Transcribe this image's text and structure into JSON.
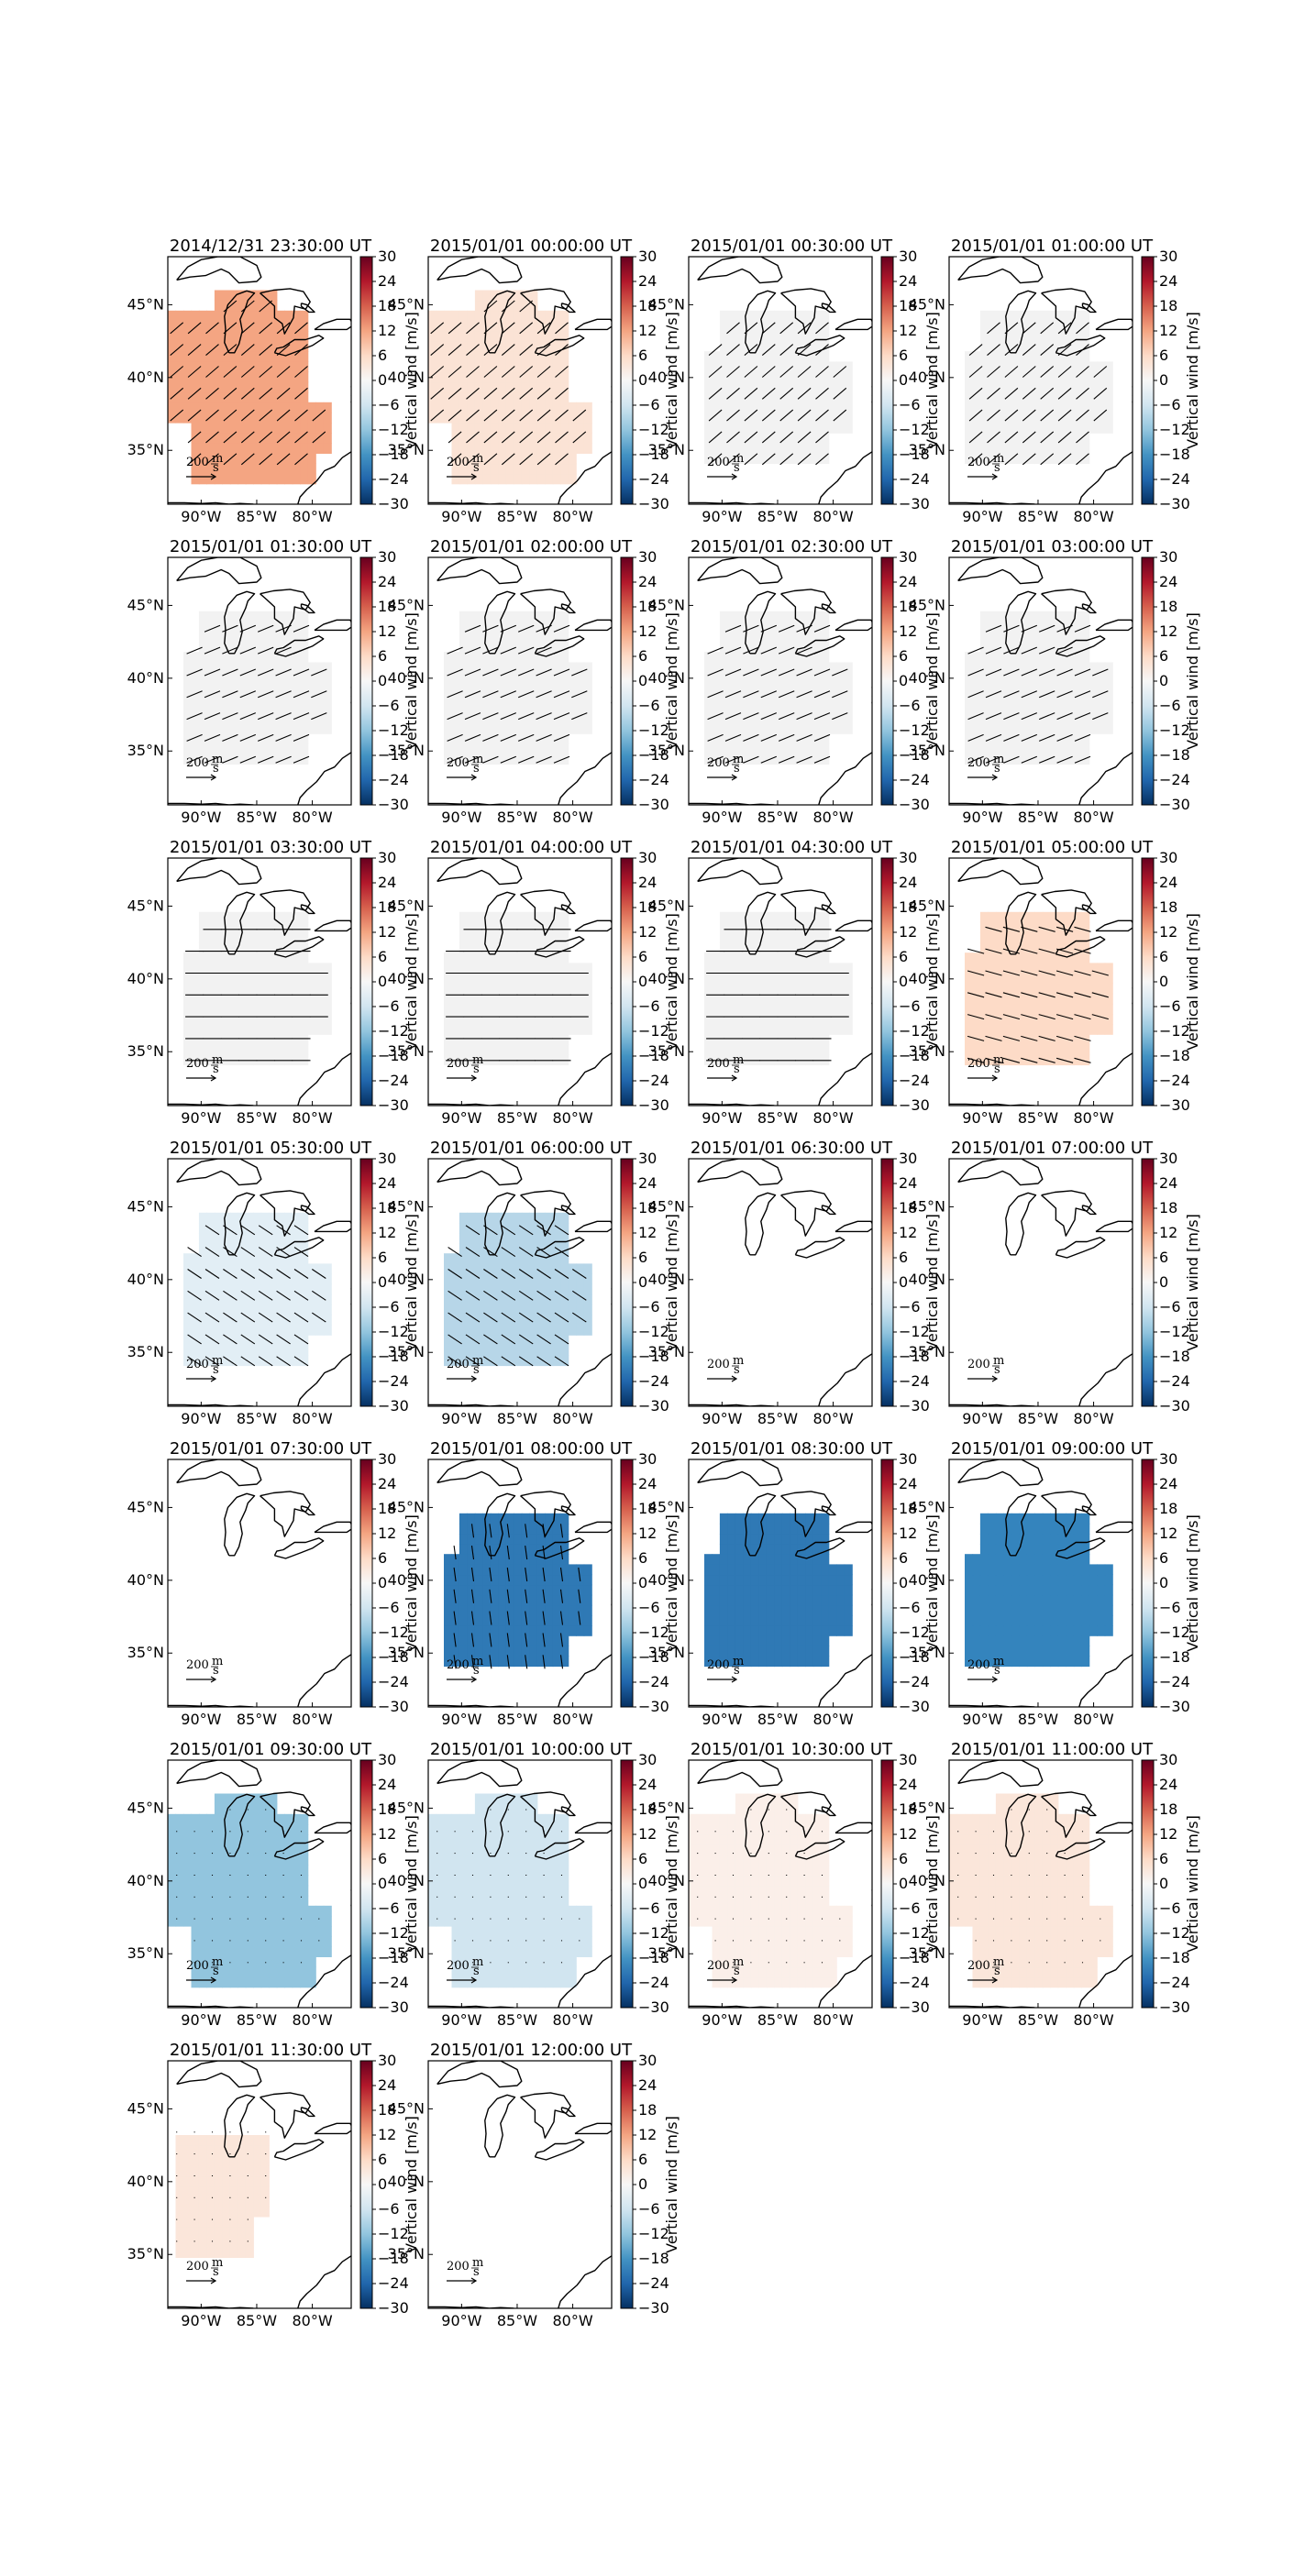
{
  "figure": {
    "colorbar": {
      "label": "Vertical wind [m/s]",
      "ticks": [
        "30",
        "24",
        "18",
        "12",
        "6",
        "0",
        "−6",
        "−12",
        "−18",
        "−24",
        "−30"
      ],
      "vmin": -30,
      "vmax": 30,
      "colormap": "RdBu_r"
    },
    "axes": {
      "lon_ticks": [
        "90°W",
        "85°W",
        "80°W"
      ],
      "lat_ticks": [
        "45°N",
        "40°N",
        "35°N"
      ]
    },
    "reference_vector": {
      "label": "200",
      "unit_numerator": "m",
      "unit_denominator": "s"
    },
    "panels": [
      {
        "title": "2014/12/31 23:30:00 UT",
        "color": "#f4a582",
        "coverage": "large",
        "arrow_dir": "ne"
      },
      {
        "title": "2015/01/01 00:00:00 UT",
        "color": "#fbe3d5",
        "coverage": "large",
        "arrow_dir": "ne"
      },
      {
        "title": "2015/01/01 00:30:00 UT",
        "color": "#f2f2f2",
        "coverage": "medium",
        "arrow_dir": "ne"
      },
      {
        "title": "2015/01/01 01:00:00 UT",
        "color": "#f2f2f2",
        "coverage": "medium",
        "arrow_dir": "ne"
      },
      {
        "title": "2015/01/01 01:30:00 UT",
        "color": "#f2f2f2",
        "coverage": "medium",
        "arrow_dir": "ene"
      },
      {
        "title": "2015/01/01 02:00:00 UT",
        "color": "#f2f2f2",
        "coverage": "medium",
        "arrow_dir": "ene"
      },
      {
        "title": "2015/01/01 02:30:00 UT",
        "color": "#f2f2f2",
        "coverage": "medium",
        "arrow_dir": "ene"
      },
      {
        "title": "2015/01/01 03:00:00 UT",
        "color": "#f2f2f2",
        "coverage": "medium",
        "arrow_dir": "ene"
      },
      {
        "title": "2015/01/01 03:30:00 UT",
        "color": "#f2f2f2",
        "coverage": "medium",
        "arrow_dir": "e"
      },
      {
        "title": "2015/01/01 04:00:00 UT",
        "color": "#f2f2f2",
        "coverage": "medium",
        "arrow_dir": "e"
      },
      {
        "title": "2015/01/01 04:30:00 UT",
        "color": "#f2f2f2",
        "coverage": "medium",
        "arrow_dir": "e"
      },
      {
        "title": "2015/01/01 05:00:00 UT",
        "color": "#fddbc7",
        "coverage": "medium",
        "arrow_dir": "ese"
      },
      {
        "title": "2015/01/01 05:30:00 UT",
        "color": "#e2eef5",
        "coverage": "medium",
        "arrow_dir": "se"
      },
      {
        "title": "2015/01/01 06:00:00 UT",
        "color": "#b7d6e8",
        "coverage": "medium",
        "arrow_dir": "se"
      },
      {
        "title": "2015/01/01 06:30:00 UT",
        "color": "",
        "coverage": "none",
        "arrow_dir": ""
      },
      {
        "title": "2015/01/01 07:00:00 UT",
        "color": "",
        "coverage": "none",
        "arrow_dir": ""
      },
      {
        "title": "2015/01/01 07:30:00 UT",
        "color": "",
        "coverage": "none",
        "arrow_dir": ""
      },
      {
        "title": "2015/01/01 08:00:00 UT",
        "color": "#2f79b5",
        "coverage": "medium",
        "arrow_dir": "s"
      },
      {
        "title": "2015/01/01 08:30:00 UT",
        "color": "#2f79b5",
        "coverage": "medium",
        "arrow_dir": ""
      },
      {
        "title": "2015/01/01 09:00:00 UT",
        "color": "#3484bd",
        "coverage": "medium",
        "arrow_dir": ""
      },
      {
        "title": "2015/01/01 09:30:00 UT",
        "color": "#92c5de",
        "coverage": "large",
        "arrow_dir": "dot"
      },
      {
        "title": "2015/01/01 10:00:00 UT",
        "color": "#d1e5f0",
        "coverage": "large",
        "arrow_dir": "dot"
      },
      {
        "title": "2015/01/01 10:30:00 UT",
        "color": "#fbefe9",
        "coverage": "large",
        "arrow_dir": "dot"
      },
      {
        "title": "2015/01/01 11:00:00 UT",
        "color": "#fbe6da",
        "coverage": "large",
        "arrow_dir": "dot"
      },
      {
        "title": "2015/01/01 11:30:00 UT",
        "color": "#fbe6da",
        "coverage": "small",
        "arrow_dir": "dot"
      },
      {
        "title": "2015/01/01 12:00:00 UT",
        "color": "",
        "coverage": "none",
        "arrow_dir": ""
      }
    ]
  }
}
